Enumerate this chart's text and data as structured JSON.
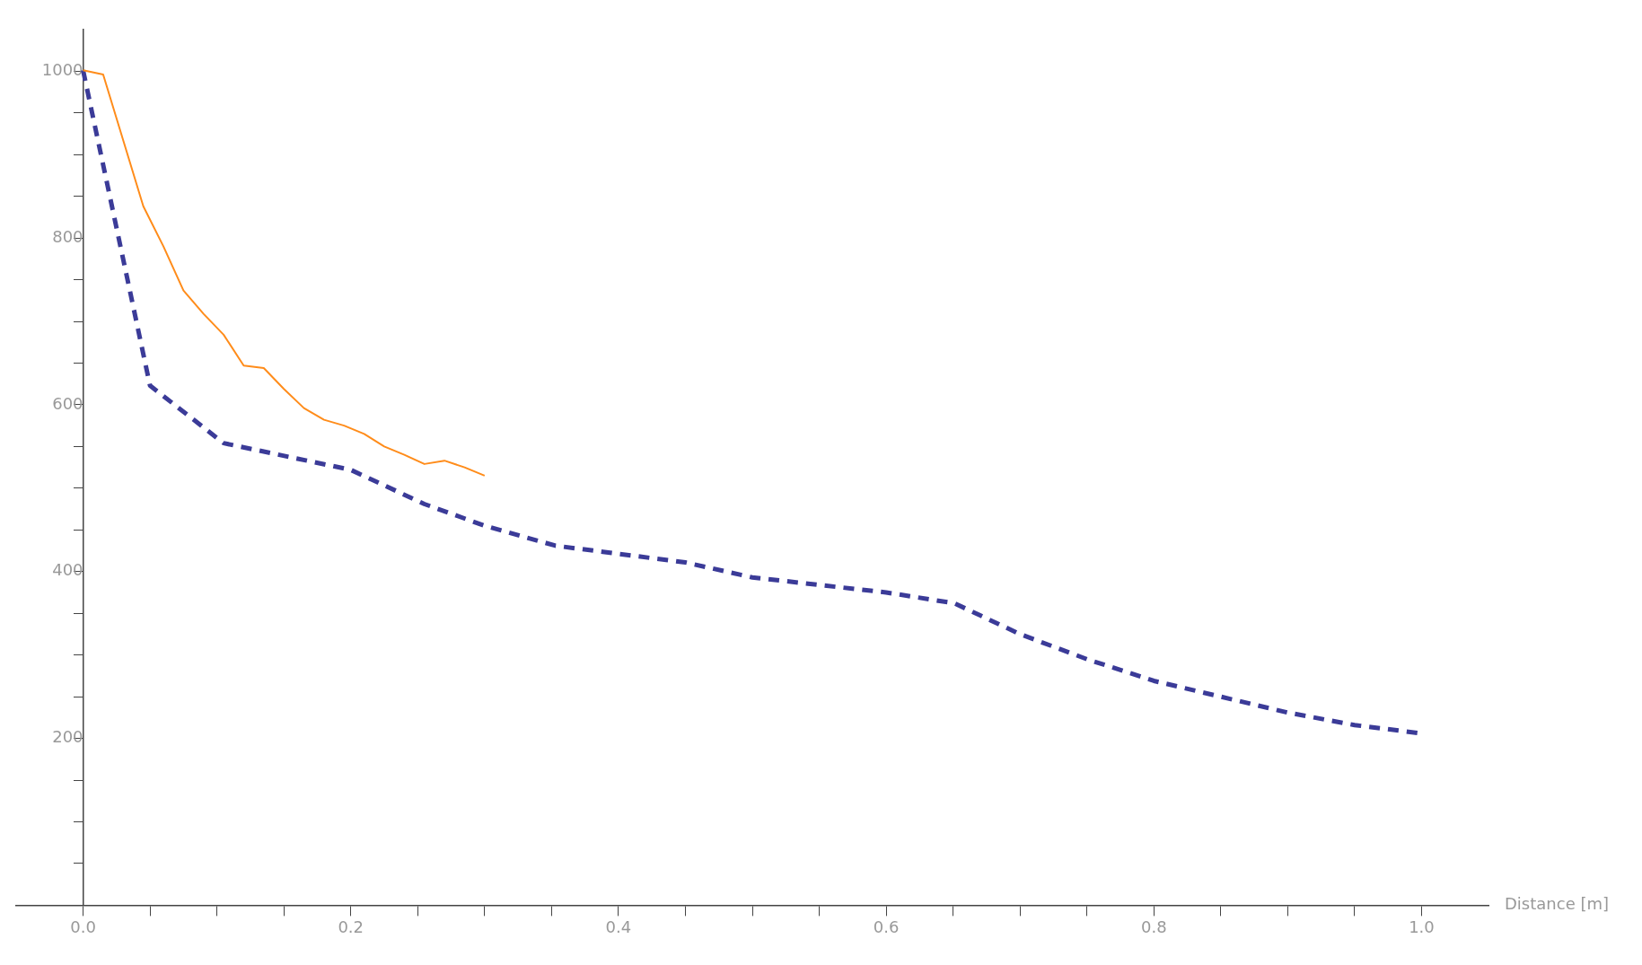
{
  "chart_data": {
    "type": "line",
    "xlabel": "Distance [m]",
    "xlim": [
      -0.05,
      1.05
    ],
    "ylim": [
      0,
      1050
    ],
    "xticks": [
      {
        "value": 0,
        "label": "0.0"
      },
      {
        "value": 0.05,
        "label": null
      },
      {
        "value": 0.1,
        "label": null
      },
      {
        "value": 0.15,
        "label": null
      },
      {
        "value": 0.2,
        "label": "0.2"
      },
      {
        "value": 0.25,
        "label": null
      },
      {
        "value": 0.3,
        "label": null
      },
      {
        "value": 0.35,
        "label": null
      },
      {
        "value": 0.4,
        "label": "0.4"
      },
      {
        "value": 0.45,
        "label": null
      },
      {
        "value": 0.5,
        "label": null
      },
      {
        "value": 0.55,
        "label": null
      },
      {
        "value": 0.6,
        "label": "0.6"
      },
      {
        "value": 0.65,
        "label": null
      },
      {
        "value": 0.7,
        "label": null
      },
      {
        "value": 0.75,
        "label": null
      },
      {
        "value": 0.8,
        "label": "0.8"
      },
      {
        "value": 0.85,
        "label": null
      },
      {
        "value": 0.9,
        "label": null
      },
      {
        "value": 0.95,
        "label": null
      },
      {
        "value": 1.0,
        "label": "1.0"
      }
    ],
    "yticks": [
      {
        "value": 50,
        "label": null
      },
      {
        "value": 100,
        "label": null
      },
      {
        "value": 150,
        "label": null
      },
      200,
      {
        "value": 250,
        "label": null
      },
      {
        "value": 300,
        "label": null
      },
      {
        "value": 350,
        "label": null
      },
      400,
      {
        "value": 450,
        "label": null
      },
      {
        "value": 500,
        "label": null
      },
      {
        "value": 550,
        "label": null
      },
      600,
      {
        "value": 650,
        "label": null
      },
      {
        "value": 700,
        "label": null
      },
      {
        "value": 750,
        "label": null
      },
      800,
      {
        "value": 850,
        "label": null
      },
      {
        "value": 900,
        "label": null
      },
      {
        "value": 950,
        "label": null
      },
      1000
    ],
    "grid": false,
    "legend": false,
    "marker": "none",
    "series": [
      {
        "color": "#ff8c1a",
        "line_style": "solid",
        "x": [
          0,
          0.015,
          0.045,
          0.06,
          0.075,
          0.09,
          0.105,
          0.12,
          0.135,
          0.15,
          0.165,
          0.18,
          0.195,
          0.21,
          0.225,
          0.24,
          0.255,
          0.27,
          0.285,
          0.3
        ],
        "values": [
          1001,
          996,
          838,
          790,
          737,
          709,
          684,
          647,
          644,
          619,
          596,
          582,
          575,
          565,
          550,
          540,
          529,
          533,
          525,
          515
        ]
      },
      {
        "color": "#3b3b98",
        "line_style": "dashed",
        "x": [
          0,
          0.05,
          0.105,
          0.2,
          0.255,
          0.3,
          0.353,
          0.45,
          0.5,
          0.6,
          0.651,
          0.7,
          0.75,
          0.8,
          0.85,
          0.9,
          0.95,
          1.0
        ],
        "values": [
          1001,
          623,
          554,
          522,
          481,
          455,
          431,
          411,
          393,
          375,
          362,
          325,
          295,
          269,
          250,
          231,
          216,
          206
        ]
      }
    ]
  }
}
